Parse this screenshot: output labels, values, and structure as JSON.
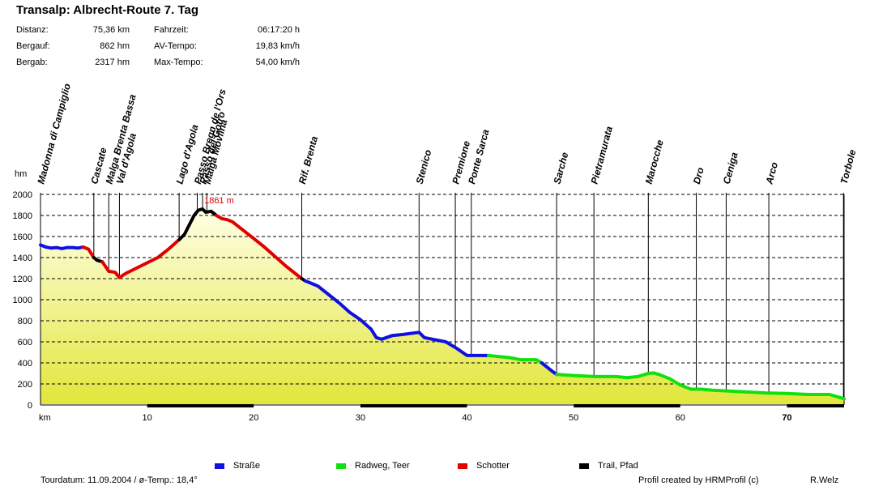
{
  "header": {
    "title": "Transalp: Albrecht-Route  7. Tag",
    "stats": [
      {
        "label": "Distanz:",
        "value": "75,36 km"
      },
      {
        "label": "Bergauf:",
        "value": "862 hm"
      },
      {
        "label": "Bergab:",
        "value": "2317 hm"
      }
    ],
    "stats2": [
      {
        "label": "Fahrzeit:",
        "value": "06:17:20 h"
      },
      {
        "label": "AV-Tempo:",
        "value": "19,83 km/h"
      },
      {
        "label": "Max-Tempo:",
        "value": "54,00 km/h"
      }
    ]
  },
  "chart_data": {
    "type": "area",
    "title": "Transalp: Albrecht-Route  7. Tag",
    "xlabel": "km",
    "ylabel": "hm",
    "xlim": [
      0,
      75.36
    ],
    "ylim": [
      0,
      2000
    ],
    "xticks": [
      10,
      20,
      30,
      40,
      50,
      60,
      70
    ],
    "yticks": [
      0,
      200,
      400,
      600,
      800,
      1000,
      1200,
      1400,
      1600,
      1800,
      2000
    ],
    "max_label": "1861 m",
    "max_point": {
      "x": 15.2,
      "y": 1861
    },
    "waypoints": [
      {
        "name": "Madonna di Campiglio",
        "km": 0
      },
      {
        "name": "Cascate",
        "km": 5.0
      },
      {
        "name": "Malga Brenta Bassa",
        "km": 6.4
      },
      {
        "name": "Val d'Agola",
        "km": 7.4
      },
      {
        "name": "Lago d'Agola",
        "km": 13.0
      },
      {
        "name": "Passo Bregn de l'Ors",
        "km": 14.7
      },
      {
        "name": "Passo del Gotro",
        "km": 15.2
      },
      {
        "name": "Malga Movlina",
        "km": 15.6
      },
      {
        "name": "Rif. Brenta",
        "km": 24.5
      },
      {
        "name": "Stenico",
        "km": 35.5
      },
      {
        "name": "Premione",
        "km": 38.9
      },
      {
        "name": "Ponte Sarca",
        "km": 40.4
      },
      {
        "name": "Sarche",
        "km": 48.4
      },
      {
        "name": "Pietramurata",
        "km": 51.9
      },
      {
        "name": "Marocche",
        "km": 57.0
      },
      {
        "name": "Dro",
        "km": 61.5
      },
      {
        "name": "Ceniga",
        "km": 64.3
      },
      {
        "name": "Arco",
        "km": 68.3
      },
      {
        "name": "Torbole",
        "km": 75.3
      }
    ],
    "series": [
      {
        "name": "Straße",
        "color": "#1010e0",
        "points": [
          [
            0,
            1520
          ],
          [
            0.5,
            1500
          ],
          [
            1,
            1490
          ],
          [
            1.5,
            1495
          ],
          [
            2,
            1485
          ],
          [
            2.5,
            1495
          ],
          [
            3,
            1495
          ],
          [
            3.5,
            1490
          ],
          [
            4,
            1500
          ]
        ]
      },
      {
        "name": "Schotter",
        "color": "#e00000",
        "points": [
          [
            4,
            1500
          ],
          [
            4.5,
            1480
          ],
          [
            5.0,
            1400
          ]
        ]
      },
      {
        "name": "Trail, Pfad",
        "color": "#000000",
        "points": [
          [
            5.0,
            1400
          ],
          [
            5.3,
            1375
          ],
          [
            5.8,
            1360
          ]
        ]
      },
      {
        "name": "Schotter",
        "color": "#e00000",
        "points": [
          [
            5.8,
            1360
          ],
          [
            6.4,
            1270
          ],
          [
            7.0,
            1260
          ],
          [
            7.4,
            1210
          ],
          [
            8,
            1250
          ],
          [
            9,
            1300
          ],
          [
            10,
            1350
          ],
          [
            11,
            1400
          ],
          [
            12,
            1480
          ],
          [
            13,
            1570
          ]
        ]
      },
      {
        "name": "Trail, Pfad",
        "color": "#000000",
        "points": [
          [
            13,
            1570
          ],
          [
            13.5,
            1620
          ],
          [
            14,
            1720
          ],
          [
            14.4,
            1800
          ],
          [
            14.8,
            1850
          ],
          [
            15.2,
            1861
          ],
          [
            15.5,
            1830
          ],
          [
            16,
            1840
          ],
          [
            16.5,
            1800
          ]
        ]
      },
      {
        "name": "Schotter",
        "color": "#e00000",
        "points": [
          [
            16.5,
            1800
          ],
          [
            17,
            1770
          ],
          [
            17.5,
            1760
          ],
          [
            18,
            1740
          ],
          [
            19,
            1660
          ],
          [
            20,
            1580
          ],
          [
            21,
            1500
          ],
          [
            22,
            1410
          ],
          [
            23,
            1320
          ],
          [
            24.5,
            1200
          ]
        ]
      },
      {
        "name": "Trail, Pfad",
        "color": "#000000",
        "points": [
          [
            24.5,
            1200
          ],
          [
            24.8,
            1180
          ]
        ]
      },
      {
        "name": "Straße",
        "color": "#1010e0",
        "points": [
          [
            24.8,
            1180
          ],
          [
            26,
            1130
          ],
          [
            27,
            1050
          ],
          [
            28,
            970
          ],
          [
            29,
            880
          ],
          [
            30,
            810
          ],
          [
            31,
            720
          ],
          [
            31.5,
            640
          ],
          [
            32,
            625
          ],
          [
            33,
            660
          ],
          [
            34,
            670
          ],
          [
            35.5,
            690
          ],
          [
            36,
            640
          ],
          [
            37,
            620
          ],
          [
            38,
            600
          ],
          [
            39,
            540
          ],
          [
            40,
            470
          ],
          [
            41,
            470
          ],
          [
            42,
            470
          ]
        ]
      },
      {
        "name": "Radweg, Teer",
        "color": "#10e010",
        "points": [
          [
            42,
            470
          ],
          [
            43,
            460
          ],
          [
            44,
            450
          ],
          [
            45,
            430
          ],
          [
            46.5,
            430
          ],
          [
            47,
            400
          ]
        ]
      },
      {
        "name": "Straße",
        "color": "#1010e0",
        "points": [
          [
            47,
            400
          ],
          [
            48,
            320
          ],
          [
            48.4,
            290
          ]
        ]
      },
      {
        "name": "Radweg, Teer",
        "color": "#10e010",
        "points": [
          [
            48.4,
            290
          ],
          [
            50,
            280
          ],
          [
            52,
            270
          ],
          [
            54,
            270
          ],
          [
            55,
            260
          ],
          [
            56,
            270
          ],
          [
            57,
            300
          ],
          [
            57.5,
            305
          ],
          [
            58,
            290
          ],
          [
            59,
            250
          ],
          [
            60,
            190
          ],
          [
            61,
            150
          ],
          [
            62,
            150
          ],
          [
            63,
            140
          ],
          [
            64,
            135
          ],
          [
            66,
            125
          ],
          [
            68,
            115
          ],
          [
            70,
            110
          ],
          [
            72,
            100
          ],
          [
            74,
            100
          ],
          [
            75,
            70
          ],
          [
            75.36,
            60
          ]
        ]
      }
    ]
  },
  "legend": [
    {
      "label": "Straße",
      "color": "#1010e0"
    },
    {
      "label": "Radweg, Teer",
      "color": "#10e010"
    },
    {
      "label": "Schotter",
      "color": "#e00000"
    },
    {
      "label": "Trail, Pfad",
      "color": "#000000"
    }
  ],
  "footer": {
    "tour_info": "Tourdatum: 11.09.2004  /  ø-Temp.: 18,4°",
    "credit": "Profil created by HRMProfil (c)",
    "author": "R.Welz"
  }
}
